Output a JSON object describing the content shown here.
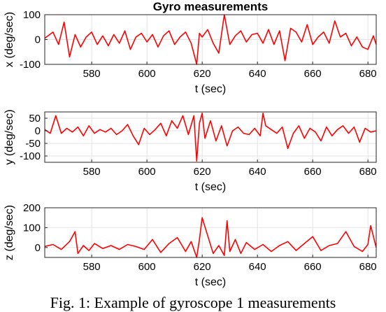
{
  "figure_title": "Gyro measurements",
  "caption": "Fig. 1: Example of gyroscope 1 measurements",
  "chart_data": [
    {
      "type": "line",
      "title": "Gyro measurements",
      "xlabel": "t (sec)",
      "ylabel": "x (deg/sec)",
      "xlim": [
        563,
        683
      ],
      "ylim": [
        -100,
        100
      ],
      "xticks": [
        580,
        600,
        620,
        640,
        660,
        680
      ],
      "yticks": [
        -100,
        0,
        100
      ],
      "grid": true,
      "series": [
        {
          "color": "#ff0000",
          "x": [
            563,
            566,
            568,
            570,
            572,
            574,
            576,
            578,
            580,
            582,
            584,
            586,
            588,
            590,
            592,
            594,
            596,
            598,
            600,
            602,
            604,
            606,
            608,
            610,
            612,
            614,
            616,
            618,
            619,
            620,
            622,
            624,
            626,
            628,
            629,
            630,
            632,
            634,
            636,
            638,
            640,
            642,
            644,
            646,
            648,
            650,
            651,
            652,
            654,
            656,
            658,
            660,
            662,
            664,
            666,
            668,
            670,
            672,
            674,
            676,
            678,
            680,
            682,
            683
          ],
          "y": [
            5,
            30,
            -20,
            70,
            -70,
            20,
            -30,
            10,
            30,
            -20,
            15,
            -25,
            20,
            -15,
            35,
            -40,
            10,
            25,
            -10,
            20,
            -30,
            15,
            35,
            -20,
            10,
            30,
            -15,
            -100,
            25,
            10,
            40,
            -15,
            -55,
            100,
            40,
            -20,
            15,
            35,
            -10,
            20,
            25,
            -15,
            40,
            -20,
            35,
            -85,
            -20,
            45,
            30,
            -10,
            60,
            -20,
            10,
            30,
            -15,
            75,
            10,
            25,
            -25,
            10,
            -30,
            -40,
            15,
            -20
          ]
        }
      ]
    },
    {
      "type": "line",
      "title": "",
      "xlabel": "t (sec)",
      "ylabel": "y (deg/sec)",
      "xlim": [
        563,
        683
      ],
      "ylim": [
        -125,
        75
      ],
      "xticks": [
        580,
        600,
        620,
        640,
        660,
        680
      ],
      "yticks": [
        -100,
        -50,
        0,
        50
      ],
      "grid": true,
      "series": [
        {
          "color": "#ff0000",
          "x": [
            563,
            565,
            567,
            569,
            571,
            573,
            575,
            577,
            579,
            581,
            583,
            585,
            587,
            589,
            591,
            593,
            595,
            597,
            599,
            601,
            603,
            605,
            607,
            609,
            611,
            613,
            615,
            617,
            618,
            619,
            620,
            621,
            623,
            625,
            627,
            629,
            631,
            633,
            635,
            637,
            639,
            641,
            642,
            643,
            645,
            647,
            649,
            651,
            653,
            655,
            657,
            659,
            661,
            663,
            665,
            667,
            669,
            671,
            673,
            675,
            677,
            679,
            681,
            683
          ],
          "y": [
            5,
            -10,
            60,
            -10,
            10,
            -5,
            15,
            -20,
            20,
            -10,
            5,
            -5,
            10,
            -15,
            0,
            25,
            -20,
            -55,
            10,
            -15,
            5,
            30,
            -20,
            40,
            10,
            60,
            -15,
            60,
            -120,
            30,
            70,
            -30,
            40,
            -40,
            20,
            -60,
            0,
            15,
            -10,
            -15,
            10,
            -20,
            70,
            20,
            5,
            -10,
            15,
            -70,
            -10,
            20,
            -30,
            10,
            -5,
            -40,
            15,
            -20,
            5,
            20,
            -10,
            15,
            -45,
            10,
            -5,
            0
          ]
        }
      ]
    },
    {
      "type": "line",
      "title": "",
      "xlabel": "t (sec)",
      "ylabel": "z (deg/sec)",
      "xlim": [
        563,
        683
      ],
      "ylim": [
        -50,
        200
      ],
      "xticks": [
        580,
        600,
        620,
        640,
        660,
        680
      ],
      "yticks": [
        0,
        100,
        200
      ],
      "grid": true,
      "series": [
        {
          "color": "#ff0000",
          "x": [
            563,
            566,
            569,
            572,
            574,
            575,
            577,
            579,
            581,
            584,
            587,
            590,
            593,
            596,
            599,
            602,
            605,
            608,
            611,
            614,
            616,
            618,
            619,
            620,
            622,
            624,
            626,
            628,
            629,
            630,
            632,
            634,
            636,
            639,
            642,
            645,
            648,
            651,
            654,
            657,
            660,
            663,
            666,
            669,
            672,
            675,
            678,
            680,
            681,
            683
          ],
          "y": [
            5,
            15,
            -10,
            30,
            80,
            -30,
            10,
            -15,
            20,
            -5,
            10,
            -10,
            15,
            5,
            -10,
            40,
            -25,
            20,
            50,
            -20,
            30,
            -50,
            40,
            150,
            60,
            -30,
            10,
            -40,
            135,
            -20,
            40,
            -30,
            25,
            -10,
            15,
            -20,
            10,
            30,
            -15,
            20,
            55,
            -15,
            10,
            20,
            80,
            5,
            -20,
            15,
            110,
            0
          ]
        }
      ]
    }
  ]
}
